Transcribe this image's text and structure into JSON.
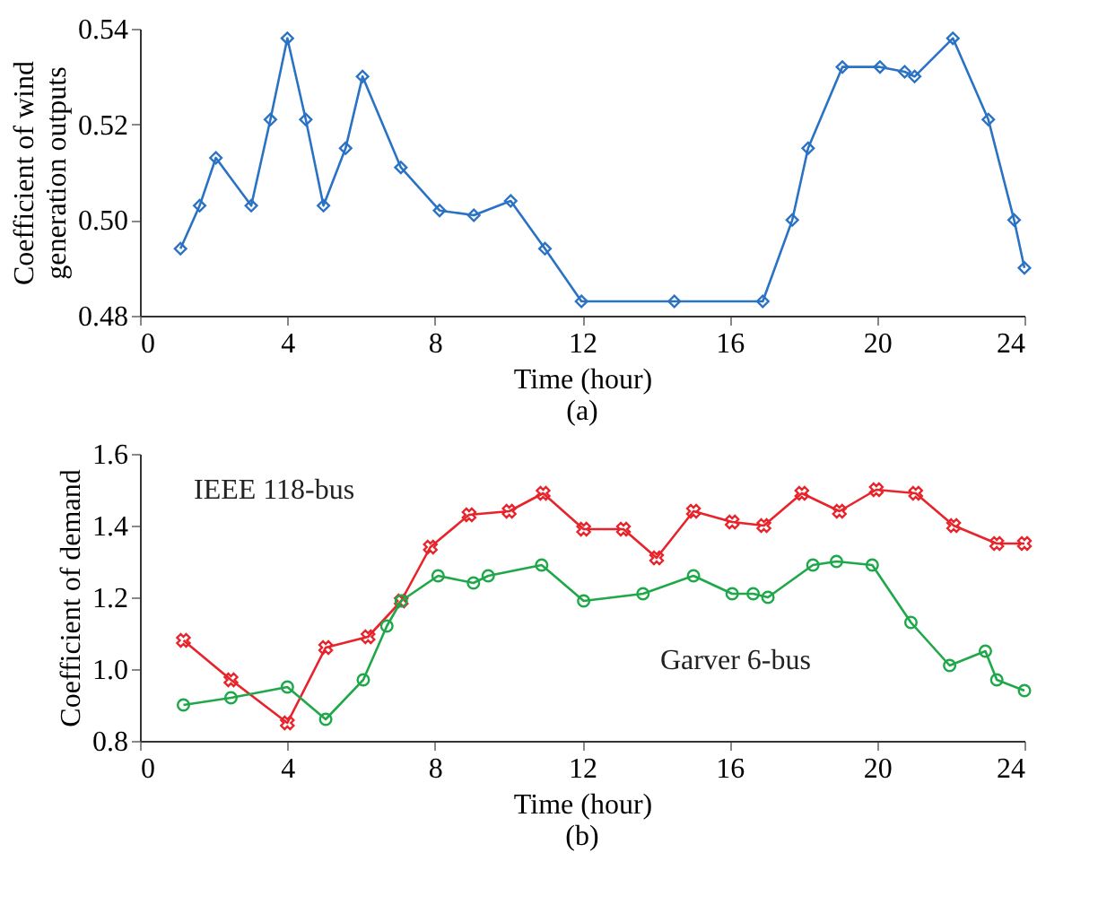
{
  "chart_data": [
    {
      "type": "line",
      "xlabel": "Time (hour)",
      "ylabel": "Coefficient of wind generation outputs",
      "annotations": [
        "(a)"
      ],
      "xlim": [
        0,
        24
      ],
      "xticks": [
        0,
        4,
        8,
        12,
        16,
        20,
        24
      ],
      "ylim": [
        0.48,
        0.54
      ],
      "yticks": [
        0.48,
        {
          "value": 0.5,
          "label": "0.50"
        },
        0.52,
        0.54
      ],
      "grid": false,
      "line_style": "solid",
      "series": [
        {
          "color": "#2a72c4",
          "marker": "diamond",
          "x": [
            1.1,
            1.62,
            2.06,
            3.02,
            3.54,
            4.0,
            4.5,
            4.98,
            5.58,
            6.04,
            7.08,
            8.13,
            9.06,
            10.06,
            10.99,
            11.98,
            14.5,
            16.9,
            17.7,
            18.13,
            19.06,
            20.08,
            20.75,
            21.02,
            22.06,
            23.02,
            23.72,
            24
          ],
          "values": [
            0.494,
            0.503,
            0.513,
            0.503,
            0.521,
            0.538,
            0.521,
            0.503,
            0.515,
            0.53,
            0.511,
            0.502,
            0.501,
            0.504,
            0.494,
            0.483,
            0.483,
            0.483,
            0.5,
            0.515,
            0.532,
            0.532,
            0.531,
            0.53,
            0.538,
            0.521,
            0.5,
            0.49
          ]
        }
      ]
    },
    {
      "type": "line",
      "xlabel": "Time (hour)",
      "ylabel": "Coefficient of demand",
      "annotations": [
        "(b)"
      ],
      "xlim": [
        0,
        24
      ],
      "xticks": [
        0,
        4,
        8,
        12,
        16,
        20,
        24
      ],
      "ylim": [
        0.8,
        1.6
      ],
      "yticks": [
        0.8,
        {
          "value": 1.0,
          "label": "1.0"
        },
        1.2,
        1.4,
        1.6
      ],
      "grid": false,
      "line_style": "solid",
      "series": [
        {
          "name": "IEEE 118-bus",
          "color": "#e8232a",
          "marker": "cross",
          "x": [
            1.18,
            2.47,
            4.0,
            5.04,
            6.19,
            7.09,
            7.88,
            8.93,
            10.02,
            10.94,
            12.04,
            13.12,
            14.02,
            15.02,
            16.07,
            16.93,
            17.96,
            18.98,
            19.98,
            21.05,
            22.08,
            23.25,
            24.0
          ],
          "values": [
            1.08,
            0.97,
            0.85,
            1.06,
            1.09,
            1.19,
            1.34,
            1.43,
            1.44,
            1.49,
            1.39,
            1.39,
            1.31,
            1.44,
            1.41,
            1.4,
            1.49,
            1.44,
            1.5,
            1.49,
            1.4,
            1.35,
            1.35
          ]
        },
        {
          "name": "Garver 6-bus",
          "color": "#1ea84a",
          "marker": "circle",
          "x": [
            1.18,
            2.47,
            4.0,
            5.04,
            6.06,
            6.7,
            7.09,
            8.09,
            9.05,
            9.45,
            10.9,
            12.04,
            13.65,
            15.02,
            16.07,
            16.64,
            17.04,
            18.26,
            18.9,
            19.87,
            20.92,
            21.97,
            22.94,
            23.25,
            24.0
          ],
          "values": [
            0.9,
            0.92,
            0.95,
            0.86,
            0.97,
            1.12,
            1.19,
            1.26,
            1.24,
            1.26,
            1.29,
            1.19,
            1.21,
            1.26,
            1.21,
            1.21,
            1.2,
            1.29,
            1.3,
            1.29,
            1.13,
            1.01,
            1.05,
            0.97,
            0.94
          ]
        }
      ]
    }
  ]
}
